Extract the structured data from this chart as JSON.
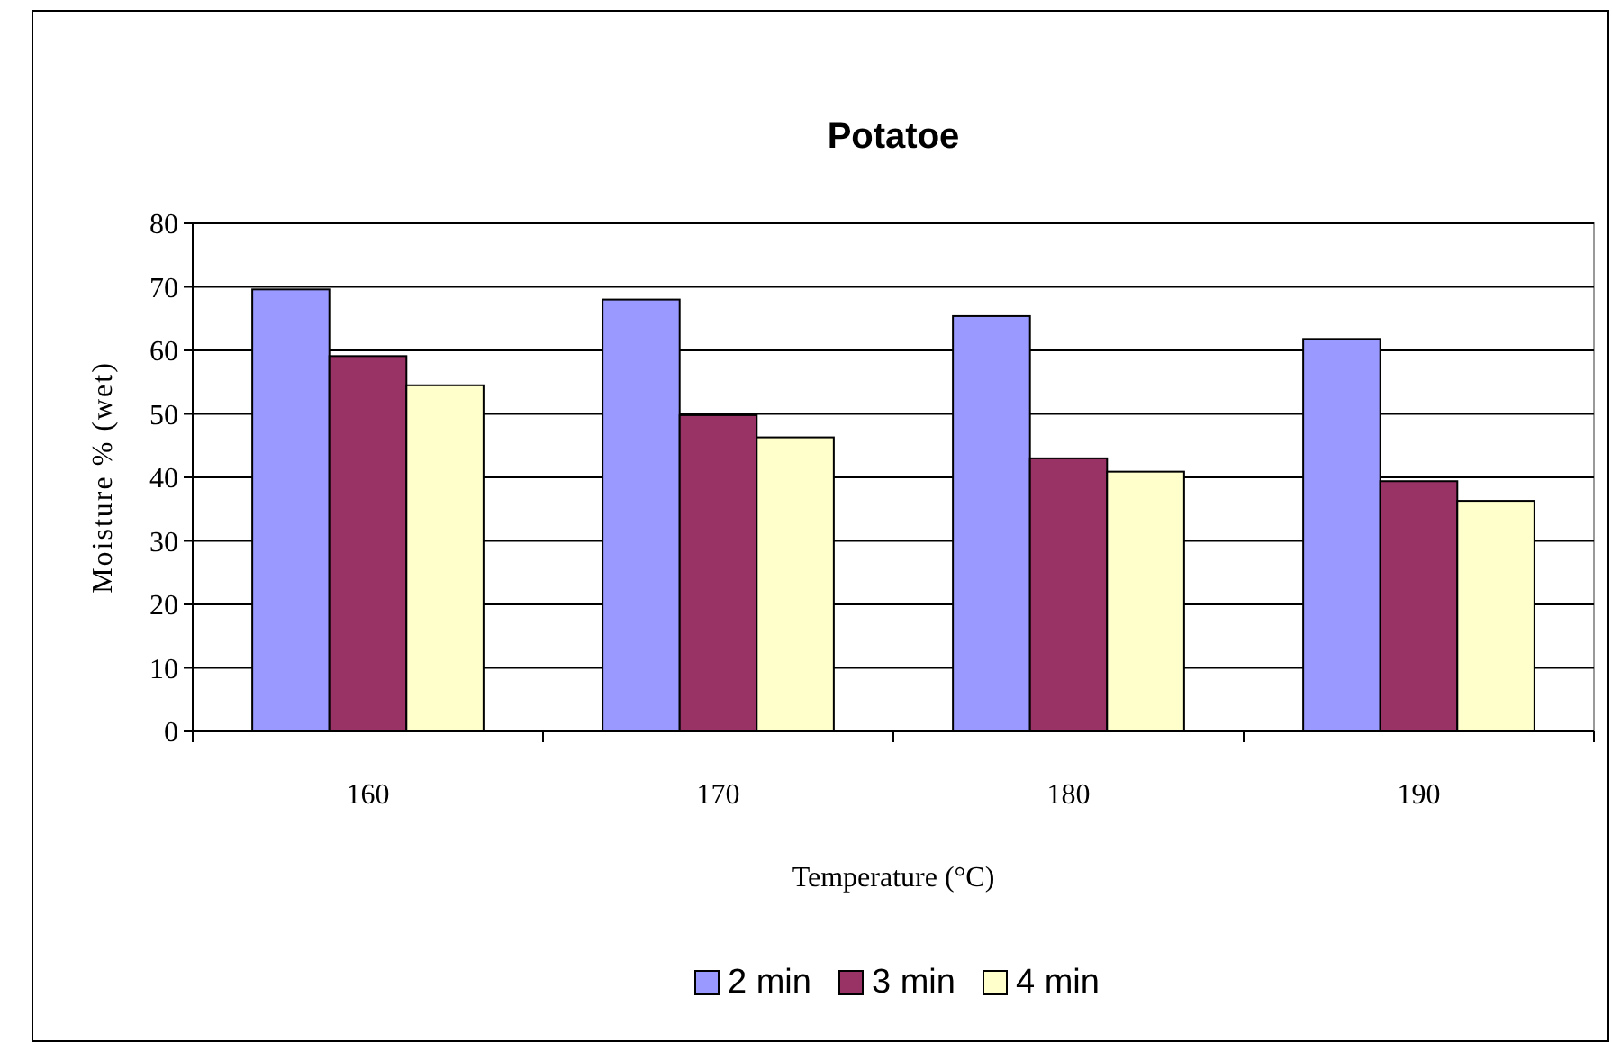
{
  "chart_data": {
    "type": "bar",
    "title": "Potatoe",
    "xlabel": "Temperature (°C)",
    "ylabel": "Moisture % (wet)",
    "categories": [
      "160",
      "170",
      "180",
      "190"
    ],
    "series": [
      {
        "name": "2 min",
        "color": "#9999ff",
        "values": [
          69.6,
          68.0,
          65.4,
          61.8
        ]
      },
      {
        "name": "3 min",
        "color": "#993366",
        "values": [
          59.1,
          49.8,
          43.0,
          39.4
        ]
      },
      {
        "name": "4 min",
        "color": "#ffffcc",
        "values": [
          54.5,
          46.3,
          40.9,
          36.3
        ]
      }
    ],
    "ylim": [
      0,
      80
    ],
    "yticks": [
      0,
      10,
      20,
      30,
      40,
      50,
      60,
      70,
      80
    ],
    "grid": "y",
    "legend": "bottom"
  }
}
